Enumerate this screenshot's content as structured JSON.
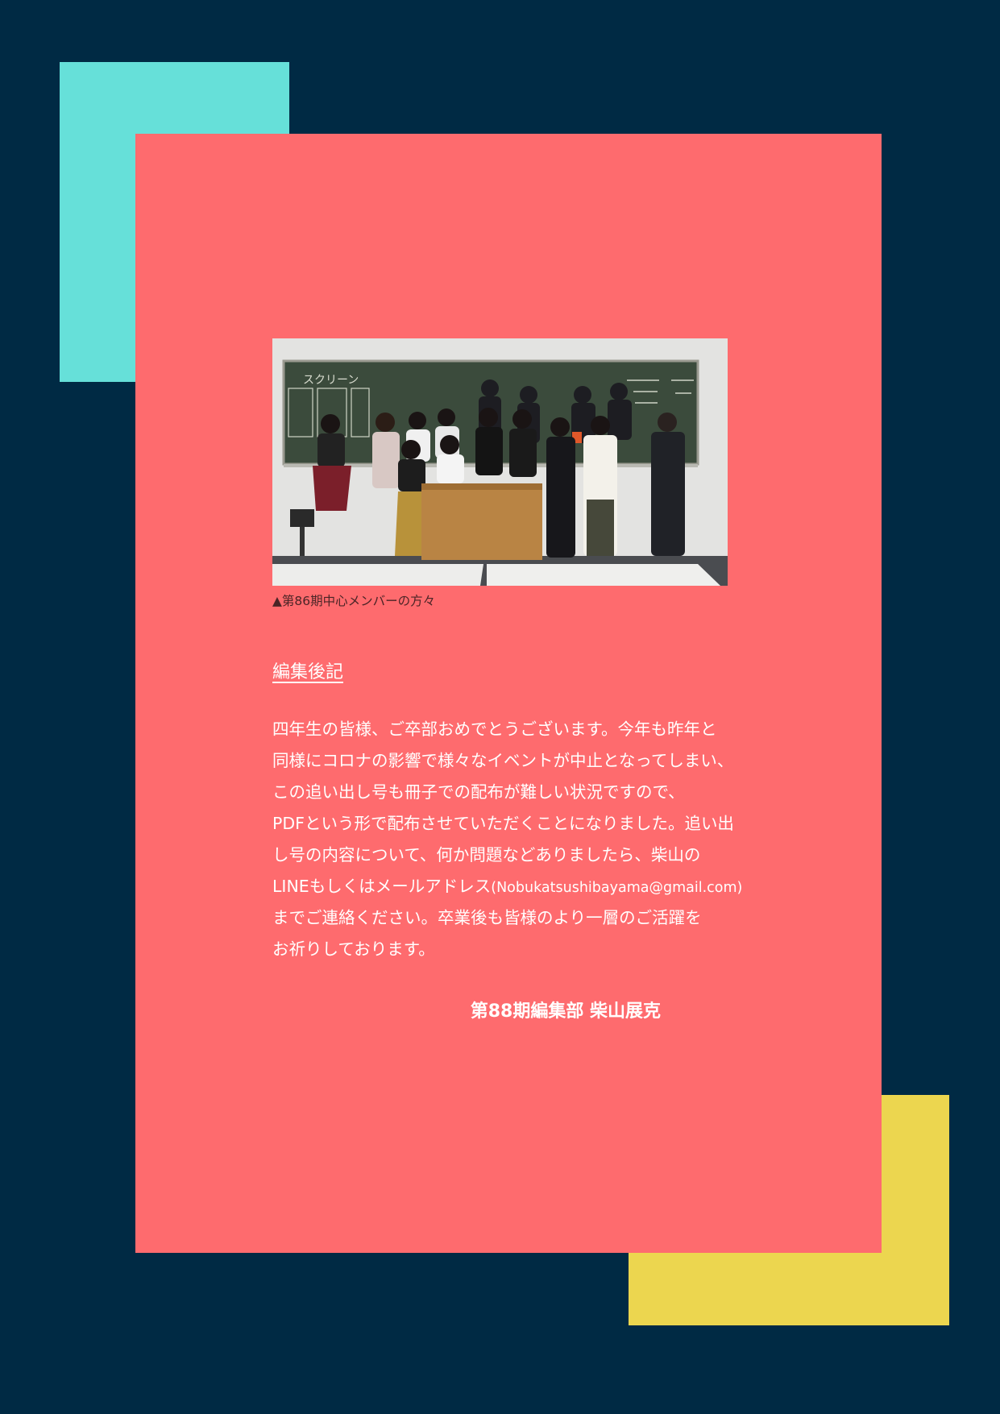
{
  "photo": {
    "alt": "第86期中心メンバー集合写真",
    "board_text": "スクリーン"
  },
  "caption": "▲第86期中心メンバーの方々",
  "heading": "編集後記",
  "body_lines": [
    "四年生の皆様、ご卒部おめでとうございます。今年も昨年と",
    "同様にコロナの影響で様々なイベントが中止となってしまい、",
    "この追い出し号も冊子での配布が難しい状況ですので、",
    "PDFという形で配布させていただくことになりました。追い出",
    "し号の内容について、何か問題などありましたら、柴山の"
  ],
  "contact_line": {
    "prefix": "LINEもしくはメールアドレス",
    "email": "(Nobukatsushibayama@gmail.com)"
  },
  "body_lines_after": [
    "までご連絡ください。卒業後も皆様のより一層のご活躍を",
    "お祈りしております。"
  ],
  "signature": "第88期編集部  柴山展克",
  "colors": {
    "background": "#002a44",
    "card": "#fe6b6e",
    "teal": "#66e0d9",
    "yellow": "#ecd64f"
  }
}
